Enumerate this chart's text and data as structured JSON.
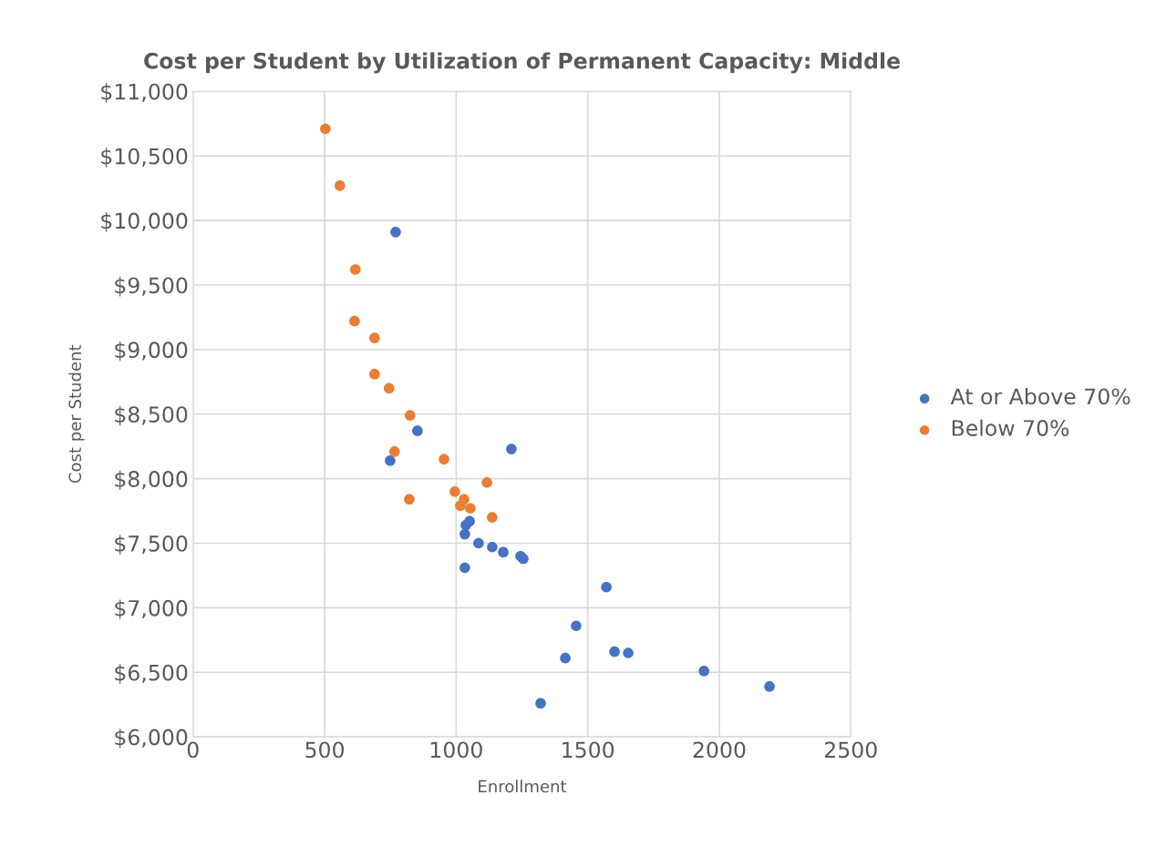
{
  "chart_data": {
    "type": "scatter",
    "title": "Cost per Student by Utilization of Permanent Capacity: Middle",
    "xlabel": "Enrollment",
    "ylabel": "Cost per Student",
    "xlim": [
      0,
      2500
    ],
    "xticks": [
      0,
      500,
      1000,
      1500,
      2000,
      2500
    ],
    "ylim": [
      6000,
      11000
    ],
    "yticks": [
      {
        "value": 6000,
        "label": "$6,000"
      },
      {
        "value": 6500,
        "label": "$6,500"
      },
      {
        "value": 7000,
        "label": "$7,000"
      },
      {
        "value": 7500,
        "label": "$7,500"
      },
      {
        "value": 8000,
        "label": "$8,000"
      },
      {
        "value": 8500,
        "label": "$8,500"
      },
      {
        "value": 9000,
        "label": "$9,000"
      },
      {
        "value": 9500,
        "label": "$9,500"
      },
      {
        "value": 10000,
        "label": "$10,000"
      },
      {
        "value": 10500,
        "label": "$10,500"
      },
      {
        "value": 11000,
        "label": "$11,000"
      }
    ],
    "grid": true,
    "legend": "right",
    "marker": "circle",
    "series": [
      {
        "name": "At or Above 70%",
        "color": "#4472c4",
        "x": [
          770,
          853,
          749,
          1210,
          1051,
          1037,
          1033,
          1085,
          1137,
          1179,
          1245,
          1255,
          1033,
          1571,
          1456,
          1415,
          1602,
          1654,
          1942,
          2191,
          1321
        ],
        "values": [
          9910,
          8370,
          8140,
          8230,
          7670,
          7640,
          7570,
          7500,
          7470,
          7430,
          7400,
          7380,
          7310,
          7160,
          6860,
          6610,
          6660,
          6650,
          6510,
          6390,
          6260
        ]
      },
      {
        "name": "Below 70%",
        "color": "#ed7d31",
        "x": [
          503,
          558,
          617,
          614,
          690,
          690,
          745,
          825,
          766,
          954,
          822,
          995,
          1117,
          1030,
          1016,
          1054,
          1137
        ],
        "values": [
          10710,
          10270,
          9620,
          9220,
          9090,
          8810,
          8700,
          8490,
          8210,
          8150,
          7840,
          7900,
          7970,
          7840,
          7790,
          7770,
          7700
        ]
      }
    ]
  }
}
